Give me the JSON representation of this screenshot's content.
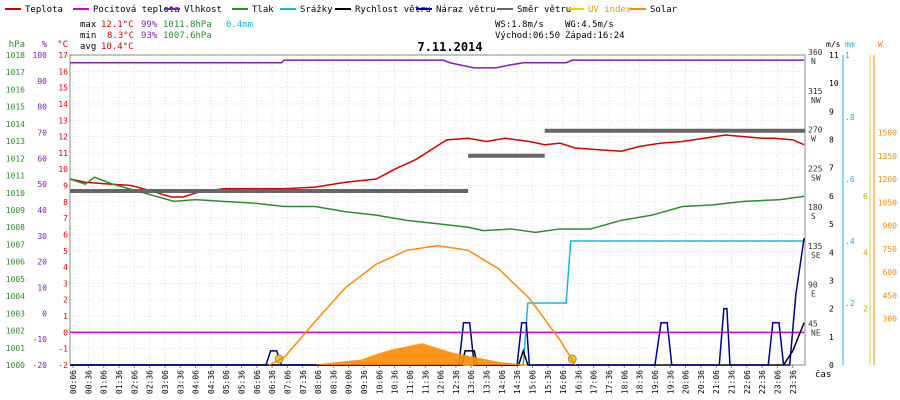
{
  "legend": [
    {
      "label": "Teplota",
      "color": "#d40000"
    },
    {
      "label": "Pocitová teplota",
      "color": "#cc00cc"
    },
    {
      "label": "Vlhkost",
      "color": "#7f1fb0"
    },
    {
      "label": "Tlak",
      "color": "#2e8b2e"
    },
    {
      "label": "Srážky",
      "color": "#18b6d8"
    },
    {
      "label": "Rychlost větru",
      "color": "#000000"
    },
    {
      "label": "Náraz větru",
      "color": "#00008b"
    },
    {
      "label": "Směr větru",
      "color": "#666666"
    },
    {
      "label": "UV index",
      "color": "#f0d000"
    },
    {
      "label": "Solar",
      "color": "#ff8a00"
    }
  ],
  "stats": {
    "max_label": "max",
    "min_label": "min",
    "avg_label": "avg",
    "max_temp": "12.1°C",
    "max_hum": "99%",
    "max_press": "1011.8hPa",
    "max_rain": "0.4mm",
    "min_temp": "8.3°C",
    "min_hum": "93%",
    "min_press": "1007.6hPa",
    "avg_temp": "10.4°C",
    "ws": "WS:1.8m/s",
    "wg": "WG:4.5m/s",
    "sunrise": "Východ:06:50",
    "sunset": "Západ:16:24"
  },
  "chart_data": {
    "type": "line",
    "title": "7.11.2014",
    "xlabel": "čas",
    "x_ticks": [
      "00:06",
      "00:36",
      "01:06",
      "01:36",
      "02:06",
      "02:36",
      "03:06",
      "03:36",
      "04:06",
      "04:36",
      "05:06",
      "05:36",
      "06:06",
      "06:36",
      "07:06",
      "07:36",
      "08:06",
      "08:36",
      "09:06",
      "09:36",
      "10:06",
      "10:36",
      "11:06",
      "11:36",
      "12:06",
      "12:36",
      "13:06",
      "13:36",
      "14:06",
      "14:36",
      "15:06",
      "15:36",
      "16:06",
      "16:36",
      "17:06",
      "17:36",
      "18:06",
      "18:36",
      "19:06",
      "19:36",
      "20:06",
      "20:36",
      "21:06",
      "21:36",
      "22:06",
      "22:36",
      "23:06",
      "23:36"
    ],
    "axes": {
      "pressure": {
        "label": "hPa",
        "color": "#2e8b2e",
        "min": 1000,
        "max": 1018,
        "ticks": [
          1000,
          1001,
          1002,
          1003,
          1004,
          1005,
          1006,
          1007,
          1008,
          1009,
          1010,
          1011,
          1012,
          1013,
          1014,
          1015,
          1016,
          1017,
          1018
        ]
      },
      "humidity": {
        "label": "%",
        "color": "#7f1fb0",
        "min": -20,
        "max": 100,
        "ticks": [
          -20,
          -10,
          0,
          10,
          20,
          30,
          40,
          50,
          60,
          70,
          80,
          90,
          100
        ]
      },
      "temperature": {
        "label": "°C",
        "color": "#d40000",
        "min": -2,
        "max": 17,
        "ticks": [
          -2,
          -1,
          0,
          1,
          2,
          3,
          4,
          5,
          6,
          7,
          8,
          9,
          10,
          11,
          12,
          13,
          14,
          15,
          16,
          17
        ]
      },
      "direction": {
        "label": "",
        "color": "#666666",
        "min": 0,
        "max": 360,
        "ticks": [
          {
            "value": 360,
            "label": "360",
            "dir": "N"
          },
          {
            "value": 315,
            "label": "315",
            "dir": "NW"
          },
          {
            "value": 270,
            "label": "270",
            "dir": "W"
          },
          {
            "value": 225,
            "label": "225",
            "dir": "SW"
          },
          {
            "value": 180,
            "label": "180",
            "dir": "S"
          },
          {
            "value": 135,
            "label": "135",
            "dir": "SE"
          },
          {
            "value": 90,
            "label": "90",
            "dir": "E"
          },
          {
            "value": 45,
            "label": "45",
            "dir": "NE"
          }
        ]
      },
      "wind": {
        "label": "m/s",
        "color": "#000000",
        "min": 0,
        "max": 11,
        "ticks": [
          0,
          1,
          2,
          3,
          4,
          5,
          6,
          7,
          8,
          9,
          10,
          11
        ]
      },
      "rain": {
        "label": "mm",
        "color": "#18b6d8",
        "min": 0,
        "max": 1,
        "ticks": [
          {
            "value": 0.2,
            "label": ".2"
          },
          {
            "value": 0.4,
            "label": ".4"
          },
          {
            "value": 0.6,
            "label": ".6"
          },
          {
            "value": 0.8,
            "label": ".8"
          },
          {
            "value": 1,
            "label": "1"
          }
        ]
      },
      "uv": {
        "label": "",
        "color": "#f0d000",
        "min": 0,
        "max": 11,
        "ticks": [
          {
            "value": 2,
            "label": "2"
          },
          {
            "value": 4,
            "label": "4"
          },
          {
            "value": 6,
            "label": "6"
          }
        ]
      },
      "solar": {
        "label": "W",
        "color": "#ff8a00",
        "min": 0,
        "max": 2000,
        "ticks": [
          300,
          450,
          600,
          750,
          900,
          1050,
          1200,
          1350,
          1500
        ]
      }
    },
    "series": [
      {
        "name": "Teplota",
        "axis": "temperature",
        "color": "#d40000",
        "points": [
          [
            0,
            9.4
          ],
          [
            0.5,
            9.2
          ],
          [
            1.2,
            9.1
          ],
          [
            2,
            9.0
          ],
          [
            2.6,
            8.7
          ],
          [
            3.3,
            8.3
          ],
          [
            3.7,
            8.3
          ],
          [
            4.2,
            8.6
          ],
          [
            5,
            8.8
          ],
          [
            6,
            8.8
          ],
          [
            7,
            8.8
          ],
          [
            8,
            8.9
          ],
          [
            9,
            9.2
          ],
          [
            10,
            9.4
          ],
          [
            10.6,
            10.0
          ],
          [
            11.3,
            10.6
          ],
          [
            11.8,
            11.2
          ],
          [
            12.3,
            11.8
          ],
          [
            13,
            11.9
          ],
          [
            13.6,
            11.7
          ],
          [
            14.2,
            11.9
          ],
          [
            15,
            11.7
          ],
          [
            15.5,
            11.5
          ],
          [
            16,
            11.6
          ],
          [
            16.5,
            11.3
          ],
          [
            17.2,
            11.2
          ],
          [
            18,
            11.1
          ],
          [
            18.6,
            11.4
          ],
          [
            19.3,
            11.6
          ],
          [
            20,
            11.7
          ],
          [
            20.7,
            11.9
          ],
          [
            21.4,
            12.1
          ],
          [
            22,
            12.0
          ],
          [
            22.6,
            11.9
          ],
          [
            23,
            11.9
          ],
          [
            23.6,
            11.8
          ],
          [
            23.97,
            11.5
          ]
        ]
      },
      {
        "name": "Pocitová teplota",
        "axis": "temperature",
        "color": "#cc00cc",
        "points": [
          [
            0,
            0
          ],
          [
            23.97,
            0
          ]
        ]
      },
      {
        "name": "Vlhkost",
        "axis": "humidity",
        "color": "#7f1fb0",
        "points": [
          [
            0,
            97
          ],
          [
            6.9,
            97
          ],
          [
            7,
            98
          ],
          [
            12.2,
            98
          ],
          [
            12.4,
            97
          ],
          [
            12.8,
            96
          ],
          [
            13.2,
            95
          ],
          [
            13.9,
            95
          ],
          [
            14.3,
            96
          ],
          [
            14.8,
            97
          ],
          [
            16.2,
            97
          ],
          [
            16.4,
            98
          ],
          [
            23.97,
            98
          ]
        ]
      },
      {
        "name": "Tlak",
        "axis": "pressure",
        "color": "#2e8b2e",
        "points": [
          [
            0,
            1010.8
          ],
          [
            0.5,
            1010.5
          ],
          [
            0.8,
            1010.9
          ],
          [
            1.4,
            1010.5
          ],
          [
            2.2,
            1010.1
          ],
          [
            2.8,
            1009.8
          ],
          [
            3.4,
            1009.5
          ],
          [
            4.1,
            1009.6
          ],
          [
            5,
            1009.5
          ],
          [
            6,
            1009.4
          ],
          [
            7,
            1009.2
          ],
          [
            8,
            1009.2
          ],
          [
            9,
            1008.9
          ],
          [
            10,
            1008.7
          ],
          [
            11,
            1008.4
          ],
          [
            12,
            1008.2
          ],
          [
            13,
            1008.0
          ],
          [
            13.5,
            1007.8
          ],
          [
            14.4,
            1007.9
          ],
          [
            15.2,
            1007.7
          ],
          [
            16,
            1007.9
          ],
          [
            17,
            1007.9
          ],
          [
            18,
            1008.4
          ],
          [
            19,
            1008.7
          ],
          [
            20,
            1009.2
          ],
          [
            21,
            1009.3
          ],
          [
            22,
            1009.5
          ],
          [
            23.2,
            1009.6
          ],
          [
            23.97,
            1009.8
          ]
        ]
      },
      {
        "name": "Srážky",
        "axis": "rain",
        "color": "#18b6d8",
        "step": true,
        "points": [
          [
            0,
            0
          ],
          [
            14.8,
            0
          ],
          [
            14.95,
            0.2
          ],
          [
            16.2,
            0.2
          ],
          [
            16.35,
            0.4
          ],
          [
            23.97,
            0.4
          ]
        ]
      },
      {
        "name": "Rychlost větru",
        "axis": "wind",
        "color": "#000000",
        "points": [
          [
            0,
            0
          ],
          [
            12.8,
            0
          ],
          [
            12.9,
            0.5
          ],
          [
            13.2,
            0.5
          ],
          [
            13.3,
            0
          ],
          [
            14.65,
            0
          ],
          [
            14.8,
            0.5
          ],
          [
            14.95,
            0
          ],
          [
            23.3,
            0
          ],
          [
            23.6,
            0.5
          ],
          [
            23.97,
            1.5
          ]
        ]
      },
      {
        "name": "Náraz větru",
        "axis": "wind",
        "color": "#00008b",
        "points": [
          [
            0,
            0
          ],
          [
            6.4,
            0
          ],
          [
            6.55,
            0.5
          ],
          [
            6.75,
            0.5
          ],
          [
            6.9,
            0
          ],
          [
            12.7,
            0
          ],
          [
            12.85,
            1.5
          ],
          [
            13.05,
            1.5
          ],
          [
            13.2,
            0
          ],
          [
            14.6,
            0
          ],
          [
            14.75,
            1.5
          ],
          [
            14.9,
            1.5
          ],
          [
            15.0,
            0
          ],
          [
            19.1,
            0
          ],
          [
            19.3,
            1.5
          ],
          [
            19.5,
            1.5
          ],
          [
            19.65,
            0
          ],
          [
            21.2,
            0
          ],
          [
            21.35,
            2
          ],
          [
            21.45,
            2
          ],
          [
            21.55,
            0
          ],
          [
            22.8,
            0
          ],
          [
            22.95,
            1.5
          ],
          [
            23.15,
            1.5
          ],
          [
            23.3,
            0
          ],
          [
            23.5,
            0
          ],
          [
            23.7,
            2.5
          ],
          [
            23.97,
            4.5
          ]
        ]
      },
      {
        "name": "Směr větru",
        "axis": "direction",
        "color": "#666666",
        "segments": true,
        "points": [
          [
            [
              0,
              202
            ],
            [
              13,
              202
            ]
          ],
          [
            [
              13,
              243
            ],
            [
              15.5,
              243
            ]
          ],
          [
            [
              15.5,
              272
            ],
            [
              24,
              272
            ]
          ]
        ]
      },
      {
        "name": "UV index",
        "axis": "uv",
        "color": "#f0d000",
        "markers": true,
        "points": [
          [
            6.83,
            0
          ],
          [
            16.4,
            0
          ]
        ]
      },
      {
        "name": "Solar",
        "axis": "solar",
        "color": "#ff8a00",
        "points": [
          [
            6.5,
            0
          ],
          [
            7,
            50
          ],
          [
            8,
            280
          ],
          [
            9,
            500
          ],
          [
            10,
            650
          ],
          [
            11,
            740
          ],
          [
            12,
            770
          ],
          [
            13,
            740
          ],
          [
            14,
            620
          ],
          [
            15,
            430
          ],
          [
            16,
            160
          ],
          [
            16.5,
            0
          ]
        ]
      },
      {
        "name": "Solar (měřeno)",
        "axis": "solar",
        "color": "#ff8a00",
        "area": true,
        "points": [
          [
            8,
            0
          ],
          [
            8.3,
            10
          ],
          [
            9,
            25
          ],
          [
            9.5,
            35
          ],
          [
            10,
            70
          ],
          [
            10.5,
            100
          ],
          [
            11,
            120
          ],
          [
            11.5,
            140
          ],
          [
            12,
            110
          ],
          [
            12.5,
            80
          ],
          [
            13,
            60
          ],
          [
            13.5,
            40
          ],
          [
            14,
            20
          ],
          [
            14.5,
            10
          ],
          [
            15,
            0
          ]
        ]
      }
    ]
  }
}
